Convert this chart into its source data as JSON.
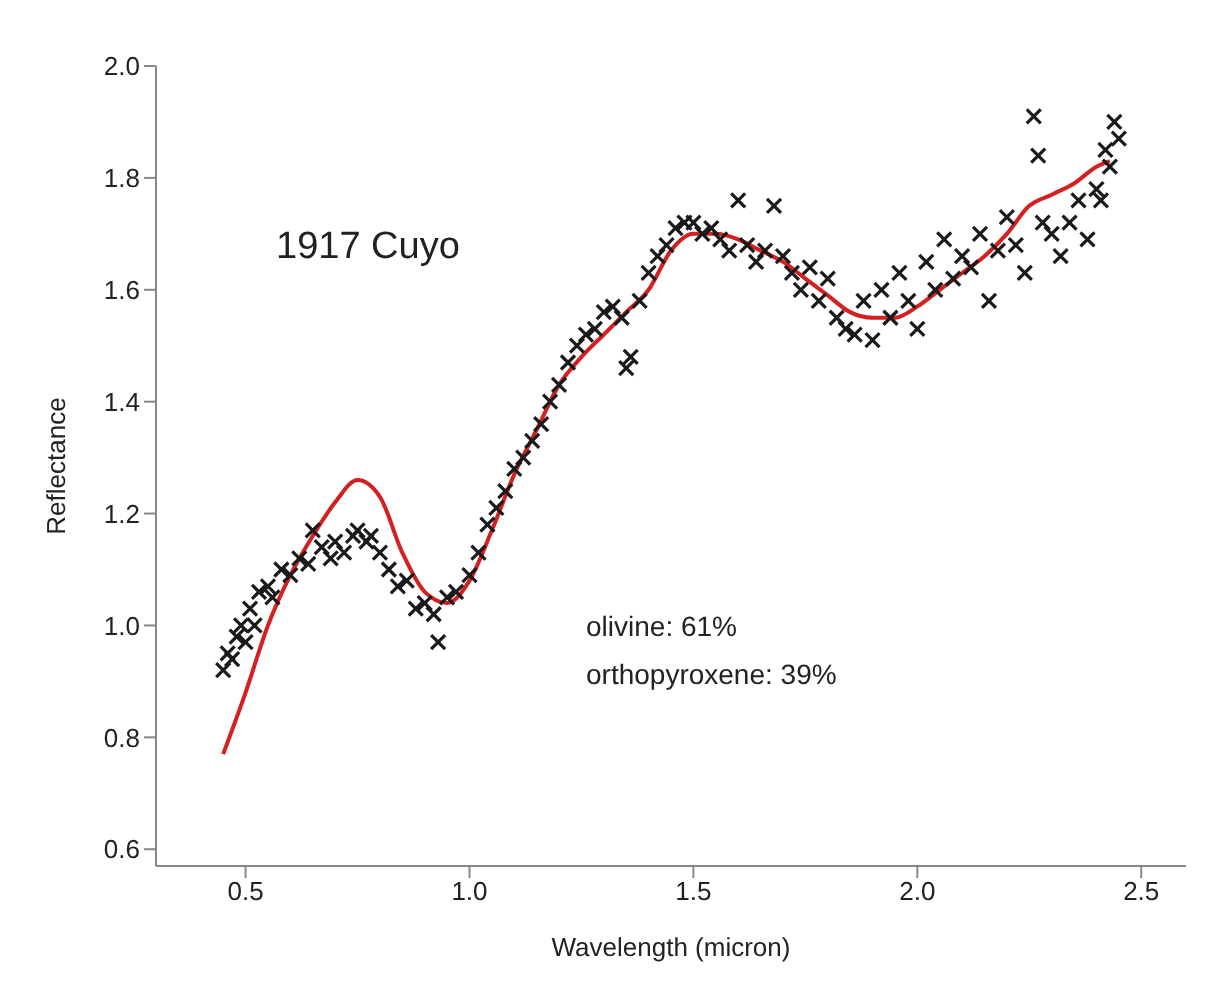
{
  "chart_data": {
    "type": "scatter",
    "xlabel": "Wavelength (micron)",
    "ylabel": "Reflectance",
    "annotations": [
      "1917 Cuyo",
      "olivine: 61%",
      "orthopyroxene: 39%"
    ],
    "xlim": [
      0.3,
      2.6
    ],
    "xticks": [
      {
        "value": 0.5,
        "label": "0.5"
      },
      {
        "value": 1.0,
        "label": "1.0"
      },
      {
        "value": 1.5,
        "label": "1.5"
      },
      {
        "value": 2.0,
        "label": "2.0"
      },
      {
        "value": 2.5,
        "label": "2.5"
      }
    ],
    "ylim": [
      0.57,
      2.0
    ],
    "yticks": [
      {
        "value": 0.6,
        "label": "0.6"
      },
      {
        "value": 0.8,
        "label": "0.8"
      },
      {
        "value": 1.0,
        "label": "1.0"
      },
      {
        "value": 1.2,
        "label": "1.2"
      },
      {
        "value": 1.4,
        "label": "1.4"
      },
      {
        "value": 1.6,
        "label": "1.6"
      },
      {
        "value": 1.8,
        "label": "1.8"
      },
      {
        "value": 2.0,
        "label": "2.0"
      }
    ],
    "grid": false,
    "marker": "cross",
    "series": [
      {
        "color": "#1a1a1a",
        "x": [
          0.45,
          0.46,
          0.47,
          0.48,
          0.49,
          0.5,
          0.51,
          0.52,
          0.53,
          0.55,
          0.56,
          0.58,
          0.6,
          0.62,
          0.64,
          0.65,
          0.67,
          0.69,
          0.7,
          0.72,
          0.74,
          0.75,
          0.77,
          0.78,
          0.8,
          0.82,
          0.84,
          0.86,
          0.88,
          0.9,
          0.92,
          0.93,
          0.95,
          0.97,
          1.0,
          1.02,
          1.04,
          1.06,
          1.08,
          1.1,
          1.12,
          1.14,
          1.16,
          1.18,
          1.2,
          1.22,
          1.24,
          1.26,
          1.28,
          1.3,
          1.32,
          1.34,
          1.35,
          1.36,
          1.38,
          1.4,
          1.42,
          1.44,
          1.46,
          1.48,
          1.5,
          1.52,
          1.54,
          1.56,
          1.58,
          1.6,
          1.62,
          1.64,
          1.66,
          1.68,
          1.7,
          1.72,
          1.74,
          1.76,
          1.78,
          1.8,
          1.82,
          1.84,
          1.86,
          1.88,
          1.9,
          1.92,
          1.94,
          1.96,
          1.98,
          2.0,
          2.02,
          2.04,
          2.06,
          2.08,
          2.1,
          2.12,
          2.14,
          2.16,
          2.18,
          2.2,
          2.22,
          2.24,
          2.26,
          2.27,
          2.28,
          2.3,
          2.32,
          2.34,
          2.36,
          2.38,
          2.4,
          2.41,
          2.42,
          2.43,
          2.44,
          2.45
        ],
        "values": [
          0.92,
          0.95,
          0.94,
          0.98,
          1.0,
          0.97,
          1.03,
          1.0,
          1.06,
          1.07,
          1.05,
          1.1,
          1.09,
          1.12,
          1.11,
          1.17,
          1.14,
          1.12,
          1.15,
          1.13,
          1.16,
          1.17,
          1.15,
          1.16,
          1.13,
          1.1,
          1.07,
          1.08,
          1.03,
          1.04,
          1.02,
          0.97,
          1.05,
          1.06,
          1.09,
          1.13,
          1.18,
          1.21,
          1.24,
          1.28,
          1.3,
          1.33,
          1.36,
          1.4,
          1.43,
          1.47,
          1.5,
          1.52,
          1.53,
          1.56,
          1.57,
          1.55,
          1.46,
          1.48,
          1.58,
          1.63,
          1.66,
          1.68,
          1.71,
          1.72,
          1.72,
          1.7,
          1.71,
          1.69,
          1.67,
          1.76,
          1.68,
          1.65,
          1.67,
          1.75,
          1.66,
          1.63,
          1.6,
          1.64,
          1.58,
          1.62,
          1.55,
          1.53,
          1.52,
          1.58,
          1.51,
          1.6,
          1.55,
          1.63,
          1.58,
          1.53,
          1.65,
          1.6,
          1.69,
          1.62,
          1.66,
          1.64,
          1.7,
          1.58,
          1.67,
          1.73,
          1.68,
          1.63,
          1.91,
          1.84,
          1.72,
          1.7,
          1.66,
          1.72,
          1.76,
          1.69,
          1.78,
          1.76,
          1.85,
          1.82,
          1.9,
          1.87
        ]
      },
      {
        "type": "line",
        "color": "#d42020",
        "marker": "none",
        "x": [
          0.45,
          0.5,
          0.55,
          0.6,
          0.65,
          0.7,
          0.75,
          0.8,
          0.85,
          0.9,
          0.95,
          1.0,
          1.05,
          1.1,
          1.15,
          1.2,
          1.25,
          1.3,
          1.35,
          1.4,
          1.45,
          1.5,
          1.55,
          1.6,
          1.65,
          1.7,
          1.75,
          1.8,
          1.85,
          1.9,
          1.95,
          2.0,
          2.05,
          2.1,
          2.15,
          2.2,
          2.25,
          2.3,
          2.35,
          2.4,
          2.43
        ],
        "values": [
          0.77,
          0.88,
          1.0,
          1.09,
          1.16,
          1.22,
          1.26,
          1.23,
          1.13,
          1.06,
          1.04,
          1.08,
          1.17,
          1.27,
          1.35,
          1.43,
          1.48,
          1.52,
          1.56,
          1.6,
          1.67,
          1.7,
          1.7,
          1.69,
          1.67,
          1.65,
          1.62,
          1.59,
          1.56,
          1.55,
          1.55,
          1.57,
          1.6,
          1.63,
          1.66,
          1.7,
          1.75,
          1.77,
          1.79,
          1.82,
          1.83
        ]
      }
    ]
  }
}
